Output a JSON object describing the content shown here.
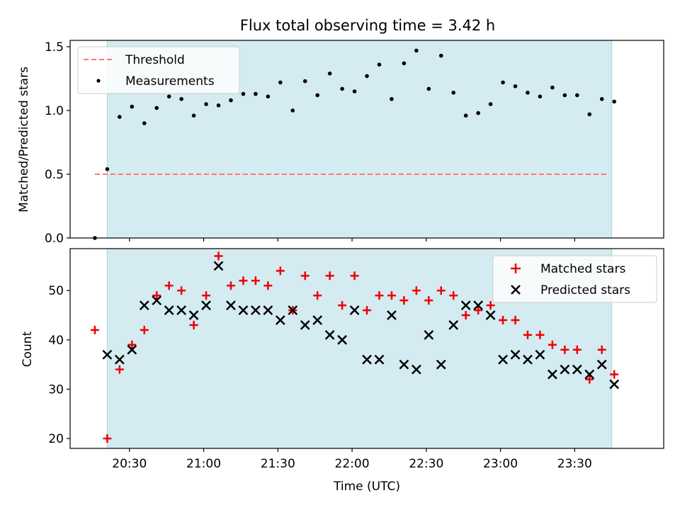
{
  "title": "Flux total observing time = 3.42 h",
  "colors": {
    "shade": "#d4ebf1",
    "threshold": "#ff7777",
    "measurement": "#000000",
    "matched": "#ee0000",
    "predicted": "#000000"
  },
  "chart_data": [
    {
      "type": "scatter",
      "ylabel": "Matched/Predicted stars",
      "xlim": [
        "20:06",
        "24:06"
      ],
      "ylim": [
        0,
        1.55
      ],
      "yticks": [
        0.0,
        0.5,
        1.0,
        1.5
      ],
      "ytick_labels": [
        "0.0",
        "0.5",
        "1.0",
        "1.5"
      ],
      "shaded_span": [
        "20:21",
        "23:45"
      ],
      "threshold": {
        "value": 0.5,
        "x_range": [
          "20:16",
          "23:44"
        ]
      },
      "legend": {
        "position": "top-left",
        "entries": [
          "Threshold",
          "Measurements"
        ]
      },
      "series": [
        {
          "name": "Measurements",
          "x": [
            "20:16",
            "20:21",
            "20:26",
            "20:31",
            "20:36",
            "20:41",
            "20:46",
            "20:51",
            "20:56",
            "21:01",
            "21:06",
            "21:11",
            "21:16",
            "21:21",
            "21:26",
            "21:31",
            "21:36",
            "21:41",
            "21:46",
            "21:51",
            "21:56",
            "22:01",
            "22:06",
            "22:11",
            "22:16",
            "22:21",
            "22:26",
            "22:31",
            "22:36",
            "22:41",
            "22:46",
            "22:51",
            "22:56",
            "23:01",
            "23:06",
            "23:11",
            "23:16",
            "23:21",
            "23:26",
            "23:31",
            "23:36",
            "23:41",
            "23:46"
          ],
          "y": [
            0.0,
            0.54,
            0.95,
            1.03,
            0.9,
            1.02,
            1.11,
            1.09,
            0.96,
            1.05,
            1.04,
            1.08,
            1.13,
            1.13,
            1.11,
            1.22,
            1.0,
            1.23,
            1.12,
            1.29,
            1.17,
            1.15,
            1.27,
            1.36,
            1.09,
            1.37,
            1.47,
            1.17,
            1.43,
            1.14,
            0.96,
            0.98,
            1.05,
            1.22,
            1.19,
            1.14,
            1.11,
            1.18,
            1.12,
            1.12,
            0.97,
            1.09,
            1.07
          ]
        }
      ]
    },
    {
      "type": "scatter",
      "xlabel": "Time (UTC)",
      "ylabel": "Count",
      "xlim": [
        "20:06",
        "24:06"
      ],
      "ylim": [
        18,
        58.5
      ],
      "yticks": [
        20,
        30,
        40,
        50
      ],
      "ytick_labels": [
        "20",
        "30",
        "40",
        "50"
      ],
      "xticks": [
        "20:30",
        "21:00",
        "21:30",
        "22:00",
        "22:30",
        "23:00",
        "23:30"
      ],
      "shaded_span": [
        "20:21",
        "23:45"
      ],
      "legend": {
        "position": "top-right",
        "entries": [
          "Matched stars",
          "Predicted stars"
        ]
      },
      "series": [
        {
          "name": "Matched stars",
          "x": [
            "20:16",
            "20:21",
            "20:26",
            "20:31",
            "20:36",
            "20:41",
            "20:46",
            "20:51",
            "20:56",
            "21:01",
            "21:06",
            "21:11",
            "21:16",
            "21:21",
            "21:26",
            "21:31",
            "21:36",
            "21:41",
            "21:46",
            "21:51",
            "21:56",
            "22:01",
            "22:06",
            "22:11",
            "22:16",
            "22:21",
            "22:26",
            "22:31",
            "22:36",
            "22:41",
            "22:46",
            "22:51",
            "22:56",
            "23:01",
            "23:06",
            "23:11",
            "23:16",
            "23:21",
            "23:26",
            "23:31",
            "23:36",
            "23:41",
            "23:46"
          ],
          "y": [
            42,
            20,
            34,
            39,
            42,
            49,
            51,
            50,
            43,
            49,
            57,
            51,
            52,
            52,
            51,
            54,
            46,
            53,
            49,
            53,
            47,
            53,
            46,
            49,
            49,
            48,
            50,
            48,
            50,
            49,
            45,
            46,
            47,
            44,
            44,
            41,
            41,
            39,
            38,
            38,
            32,
            38,
            33
          ]
        },
        {
          "name": "Predicted stars",
          "x": [
            "20:21",
            "20:26",
            "20:31",
            "20:36",
            "20:41",
            "20:46",
            "20:51",
            "20:56",
            "21:01",
            "21:06",
            "21:11",
            "21:16",
            "21:21",
            "21:26",
            "21:31",
            "21:36",
            "21:41",
            "21:46",
            "21:51",
            "21:56",
            "22:01",
            "22:06",
            "22:11",
            "22:16",
            "22:21",
            "22:26",
            "22:31",
            "22:36",
            "22:41",
            "22:46",
            "22:51",
            "22:56",
            "23:01",
            "23:06",
            "23:11",
            "23:16",
            "23:21",
            "23:26",
            "23:31",
            "23:36",
            "23:41",
            "23:46"
          ],
          "y": [
            37,
            36,
            38,
            47,
            48,
            46,
            46,
            45,
            47,
            55,
            47,
            46,
            46,
            46,
            44,
            46,
            43,
            44,
            41,
            40,
            46,
            36,
            36,
            45,
            35,
            34,
            41,
            35,
            43,
            47,
            47,
            45,
            36,
            37,
            36,
            37,
            33,
            34,
            34,
            33,
            35,
            31
          ]
        }
      ]
    }
  ]
}
